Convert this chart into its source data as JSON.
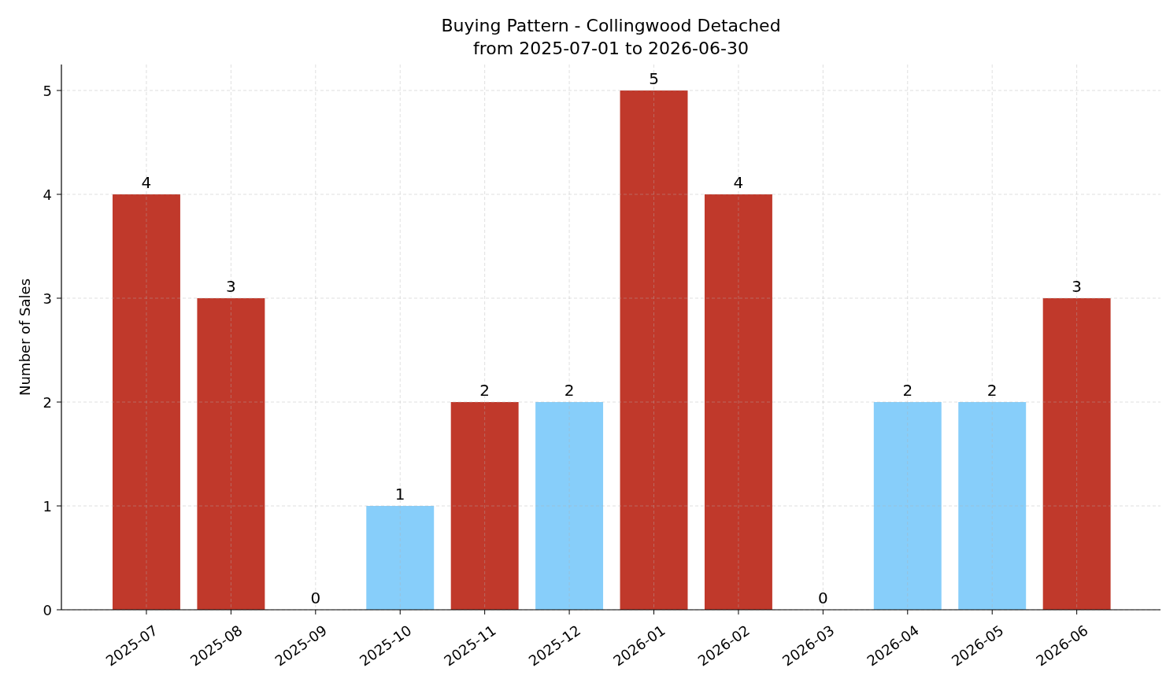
{
  "chart_data": {
    "type": "bar",
    "title": "Buying Pattern - Collingwood Detached",
    "subtitle": "from 2025-07-01 to 2026-06-30",
    "ylabel": "Number of Sales",
    "categories": [
      "2025-07",
      "2025-08",
      "2025-09",
      "2025-10",
      "2025-11",
      "2025-12",
      "2026-01",
      "2026-02",
      "2026-03",
      "2026-04",
      "2026-05",
      "2026-06"
    ],
    "values": [
      4,
      3,
      0,
      1,
      2,
      2,
      5,
      4,
      0,
      2,
      2,
      3
    ],
    "colors": [
      "#c0392b",
      "#c0392b",
      "#c0392b",
      "#87cefa",
      "#c0392b",
      "#87cefa",
      "#c0392b",
      "#c0392b",
      "#c0392b",
      "#87cefa",
      "#87cefa",
      "#c0392b"
    ],
    "ylim": [
      0,
      5.25
    ],
    "yticks": [
      0,
      1,
      2,
      3,
      4,
      5
    ],
    "grid": true,
    "data_labels": true
  }
}
